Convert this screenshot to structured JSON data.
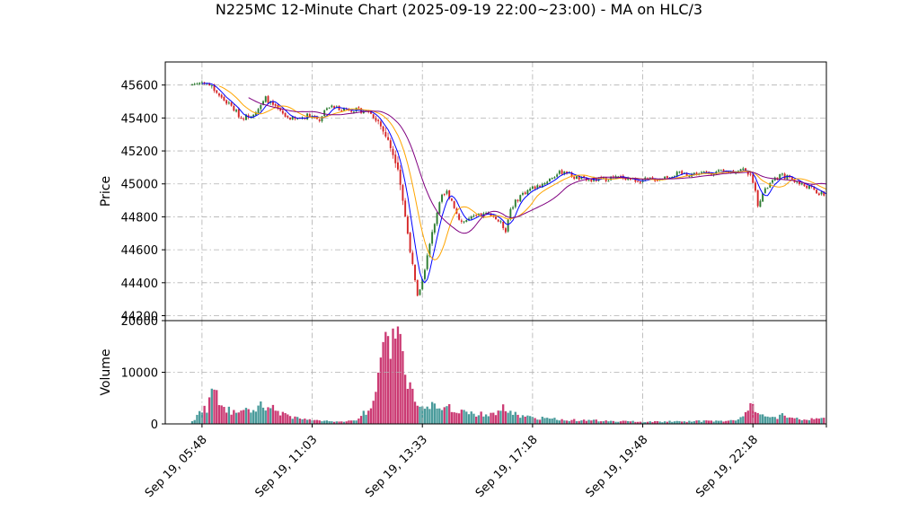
{
  "chart_data": {
    "type": "candlestick",
    "title": "N225MC 12-Minute Chart (2025-09-19 22:00~23:00) - MA on HLC/3",
    "price_panel": {
      "ylabel": "Price",
      "ylim": [
        44170,
        45740
      ],
      "yticks": [
        44200,
        44400,
        44600,
        44800,
        45000,
        45200,
        45400,
        45600
      ]
    },
    "volume_panel": {
      "ylabel": "Volume",
      "ylim": [
        0,
        20000
      ],
      "yticks": [
        0,
        10000,
        20000
      ]
    },
    "x_axis": {
      "xlim": [
        -11,
        259
      ],
      "tick_positions": [
        4,
        49,
        94,
        139,
        184,
        229,
        259
      ],
      "tick_labels": [
        "Sep 19, 05:48",
        "Sep 19, 11:03",
        "Sep 19, 13:33",
        "Sep 19, 17:18",
        "Sep 19, 19:48",
        "Sep 19, 22:18",
        ""
      ]
    },
    "grid": true,
    "colors": {
      "up": "#2e7d32",
      "down": "#d62728",
      "ma_fast": "#0000ff",
      "ma_mid": "#ffa500",
      "ma_slow": "#800080"
    },
    "close_anchors": [
      [
        0,
        45605
      ],
      [
        5,
        45620
      ],
      [
        8,
        45590
      ],
      [
        12,
        45520
      ],
      [
        16,
        45470
      ],
      [
        20,
        45400
      ],
      [
        24,
        45420
      ],
      [
        28,
        45470
      ],
      [
        30,
        45520
      ],
      [
        34,
        45460
      ],
      [
        38,
        45410
      ],
      [
        42,
        45390
      ],
      [
        48,
        45420
      ],
      [
        52,
        45390
      ],
      [
        55,
        45470
      ],
      [
        60,
        45460
      ],
      [
        66,
        45450
      ],
      [
        72,
        45440
      ],
      [
        76,
        45380
      ],
      [
        80,
        45260
      ],
      [
        84,
        45100
      ],
      [
        86,
        44900
      ],
      [
        88,
        44700
      ],
      [
        90,
        44500
      ],
      [
        92,
        44310
      ],
      [
        94,
        44420
      ],
      [
        96,
        44560
      ],
      [
        98,
        44700
      ],
      [
        100,
        44830
      ],
      [
        102,
        44920
      ],
      [
        104,
        44950
      ],
      [
        106,
        44900
      ],
      [
        108,
        44820
      ],
      [
        110,
        44770
      ],
      [
        114,
        44790
      ],
      [
        118,
        44810
      ],
      [
        122,
        44820
      ],
      [
        126,
        44760
      ],
      [
        128,
        44720
      ],
      [
        130,
        44850
      ],
      [
        134,
        44930
      ],
      [
        138,
        44970
      ],
      [
        142,
        44990
      ],
      [
        148,
        45050
      ],
      [
        152,
        45080
      ],
      [
        156,
        45040
      ],
      [
        162,
        45020
      ],
      [
        168,
        45030
      ],
      [
        176,
        45040
      ],
      [
        182,
        45020
      ],
      [
        190,
        45030
      ],
      [
        198,
        45060
      ],
      [
        204,
        45060
      ],
      [
        212,
        45070
      ],
      [
        218,
        45070
      ],
      [
        226,
        45090
      ],
      [
        229,
        45020
      ],
      [
        231,
        44880
      ],
      [
        233,
        44940
      ],
      [
        236,
        45000
      ],
      [
        240,
        45050
      ],
      [
        244,
        45040
      ],
      [
        248,
        45000
      ],
      [
        252,
        44980
      ],
      [
        256,
        44940
      ],
      [
        260,
        44930
      ],
      [
        266,
        44950
      ]
    ],
    "volume_anchors": [
      [
        0,
        500
      ],
      [
        2,
        1500
      ],
      [
        4,
        3000
      ],
      [
        6,
        2500
      ],
      [
        8,
        7500
      ],
      [
        10,
        6000
      ],
      [
        12,
        4000
      ],
      [
        14,
        2800
      ],
      [
        16,
        2500
      ],
      [
        20,
        2200
      ],
      [
        24,
        3000
      ],
      [
        28,
        3800
      ],
      [
        32,
        3200
      ],
      [
        36,
        2200
      ],
      [
        40,
        1500
      ],
      [
        44,
        1000
      ],
      [
        48,
        800
      ],
      [
        52,
        600
      ],
      [
        56,
        500
      ],
      [
        60,
        500
      ],
      [
        64,
        600
      ],
      [
        68,
        900
      ],
      [
        70,
        2000
      ],
      [
        72,
        3000
      ],
      [
        74,
        5000
      ],
      [
        76,
        9000
      ],
      [
        78,
        13000
      ],
      [
        80,
        17500
      ],
      [
        82,
        18500
      ],
      [
        84,
        16000
      ],
      [
        86,
        12000
      ],
      [
        88,
        9000
      ],
      [
        90,
        6000
      ],
      [
        92,
        5000
      ],
      [
        96,
        3800
      ],
      [
        100,
        3500
      ],
      [
        104,
        3000
      ],
      [
        108,
        2800
      ],
      [
        112,
        2400
      ],
      [
        116,
        2000
      ],
      [
        120,
        1800
      ],
      [
        124,
        2200
      ],
      [
        128,
        3200
      ],
      [
        130,
        2200
      ],
      [
        134,
        1500
      ],
      [
        140,
        1200
      ],
      [
        146,
        1000
      ],
      [
        152,
        800
      ],
      [
        160,
        700
      ],
      [
        170,
        600
      ],
      [
        180,
        500
      ],
      [
        190,
        450
      ],
      [
        200,
        500
      ],
      [
        210,
        550
      ],
      [
        220,
        600
      ],
      [
        224,
        1200
      ],
      [
        226,
        2800
      ],
      [
        228,
        3500
      ],
      [
        230,
        3000
      ],
      [
        232,
        2200
      ],
      [
        234,
        1500
      ],
      [
        238,
        1200
      ],
      [
        242,
        1800
      ],
      [
        246,
        1100
      ],
      [
        250,
        800
      ],
      [
        254,
        1000
      ],
      [
        258,
        1200
      ],
      [
        262,
        900
      ],
      [
        266,
        800
      ]
    ],
    "candle_count": 267,
    "moving_averages": [
      {
        "type": "line",
        "window": 5
      },
      {
        "type": "line",
        "window": 12
      },
      {
        "type": "line",
        "window": 24
      }
    ]
  }
}
